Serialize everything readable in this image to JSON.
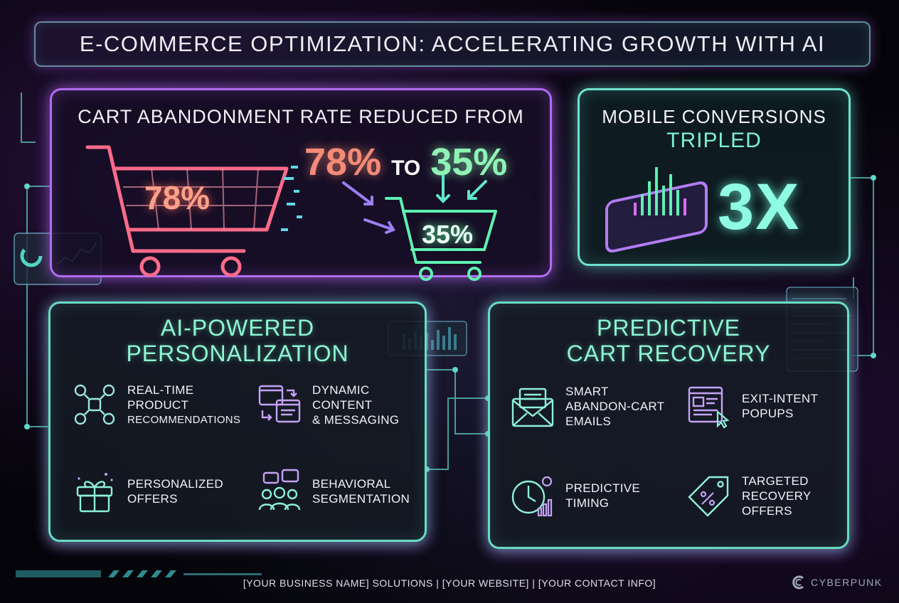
{
  "title": "E-COMMERCE OPTIMIZATION: ACCELERATING GROWTH WITH AI",
  "cart": {
    "heading": "CART ABANDONMENT RATE REDUCED FROM",
    "from_value": "78%",
    "to_word": "TO",
    "to_value": "35%",
    "red_cart_label": "78%",
    "green_cart_label": "35%"
  },
  "mobile": {
    "heading_line1": "MOBILE CONVERSIONS",
    "heading_line2": "TRIPLED",
    "big_value": "3X"
  },
  "personalization": {
    "title_line1": "AI-POWERED",
    "title_line2": "PERSONALIZATION",
    "features": [
      {
        "icon": "network-icon",
        "lines": [
          "REAL-TIME",
          "PRODUCT",
          "RECOMMENDATIONS"
        ]
      },
      {
        "icon": "content-windows-icon",
        "lines": [
          "DYNAMIC",
          "CONTENT",
          "& MESSAGING"
        ]
      },
      {
        "icon": "gift-icon",
        "lines": [
          "PERSONALIZED",
          "OFFERS"
        ]
      },
      {
        "icon": "users-chat-icon",
        "lines": [
          "BEHAVIORAL",
          "SEGMENTATION"
        ]
      }
    ]
  },
  "recovery": {
    "title_line1": "PREDICTIVE",
    "title_line2": "CART RECOVERY",
    "features": [
      {
        "icon": "envelope-icon",
        "lines": [
          "SMART",
          "ABANDON-CART",
          "EMAILS"
        ]
      },
      {
        "icon": "popup-cursor-icon",
        "lines": [
          "EXIT-INTENT",
          "POPUPS"
        ]
      },
      {
        "icon": "clock-gear-icon",
        "lines": [
          "PREDICTIVE",
          "TIMING"
        ]
      },
      {
        "icon": "price-tag-icon",
        "lines": [
          "TARGETED",
          "RECOVERY",
          "OFFERS"
        ]
      }
    ]
  },
  "footer": {
    "text": "[YOUR BUSINESS NAME] SOLUTIONS  |  [YOUR WEBSITE]  |  [YOUR CONTACT INFO]",
    "brand": "CYBERPUNK"
  },
  "colors": {
    "purple": "#b26cf2",
    "teal": "#68dcc4",
    "red": "#f48b77",
    "green": "#8ff3b5"
  }
}
